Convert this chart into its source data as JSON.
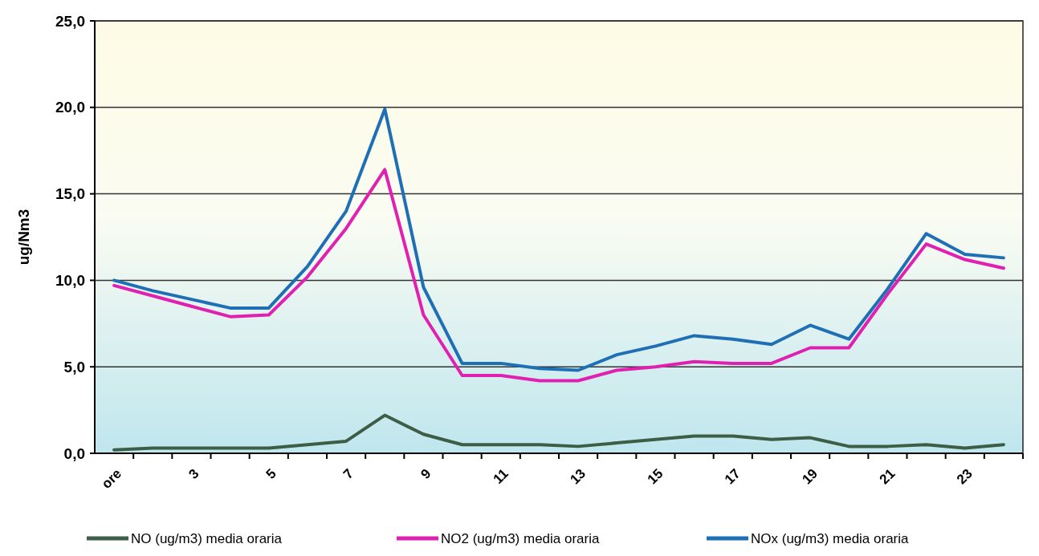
{
  "chart_data": {
    "type": "line",
    "ylabel": "ug/Nm3",
    "categories": [
      "ore",
      null,
      "3",
      null,
      "5",
      null,
      "7",
      null,
      "9",
      null,
      "11",
      null,
      "13",
      null,
      "15",
      null,
      "17",
      null,
      "19",
      null,
      "21",
      null,
      "23",
      null
    ],
    "series": [
      {
        "name": "NO (ug/m3) media oraria",
        "color": "#3d5e45",
        "values": [
          0.2,
          0.3,
          0.3,
          0.3,
          0.3,
          0.5,
          0.7,
          2.2,
          1.1,
          0.5,
          0.5,
          0.5,
          0.4,
          0.6,
          0.8,
          1.0,
          1.0,
          0.8,
          0.9,
          0.4,
          0.4,
          0.5,
          0.3,
          0.5
        ]
      },
      {
        "name": "NO2 (ug/m3) media oraria",
        "color": "#e020b0",
        "values": [
          9.7,
          9.1,
          8.5,
          7.9,
          8.0,
          10.2,
          13.0,
          16.4,
          8.0,
          4.5,
          4.5,
          4.2,
          4.2,
          4.8,
          5.0,
          5.3,
          5.2,
          5.2,
          6.1,
          6.1,
          9.2,
          12.1,
          11.2,
          10.7
        ]
      },
      {
        "name": "NOx (ug/m3) media oraria",
        "color": "#1f6fb5",
        "values": [
          10.0,
          9.4,
          8.9,
          8.4,
          8.4,
          10.8,
          14.0,
          19.9,
          9.6,
          5.2,
          5.2,
          4.9,
          4.8,
          5.7,
          6.2,
          6.8,
          6.6,
          6.3,
          7.4,
          6.6,
          9.5,
          12.7,
          11.5,
          11.3
        ]
      }
    ],
    "ylim": [
      0,
      25
    ],
    "yticks": [
      {
        "value": 0,
        "label": "0,0"
      },
      {
        "value": 5,
        "label": "5,0"
      },
      {
        "value": 10,
        "label": "10,0"
      },
      {
        "value": 15,
        "label": "15,0"
      },
      {
        "value": 20,
        "label": "20,0"
      },
      {
        "value": 25,
        "label": "25,0"
      }
    ],
    "grid": "y",
    "legend": "bottom",
    "marker": "none",
    "line_style": "solid"
  }
}
